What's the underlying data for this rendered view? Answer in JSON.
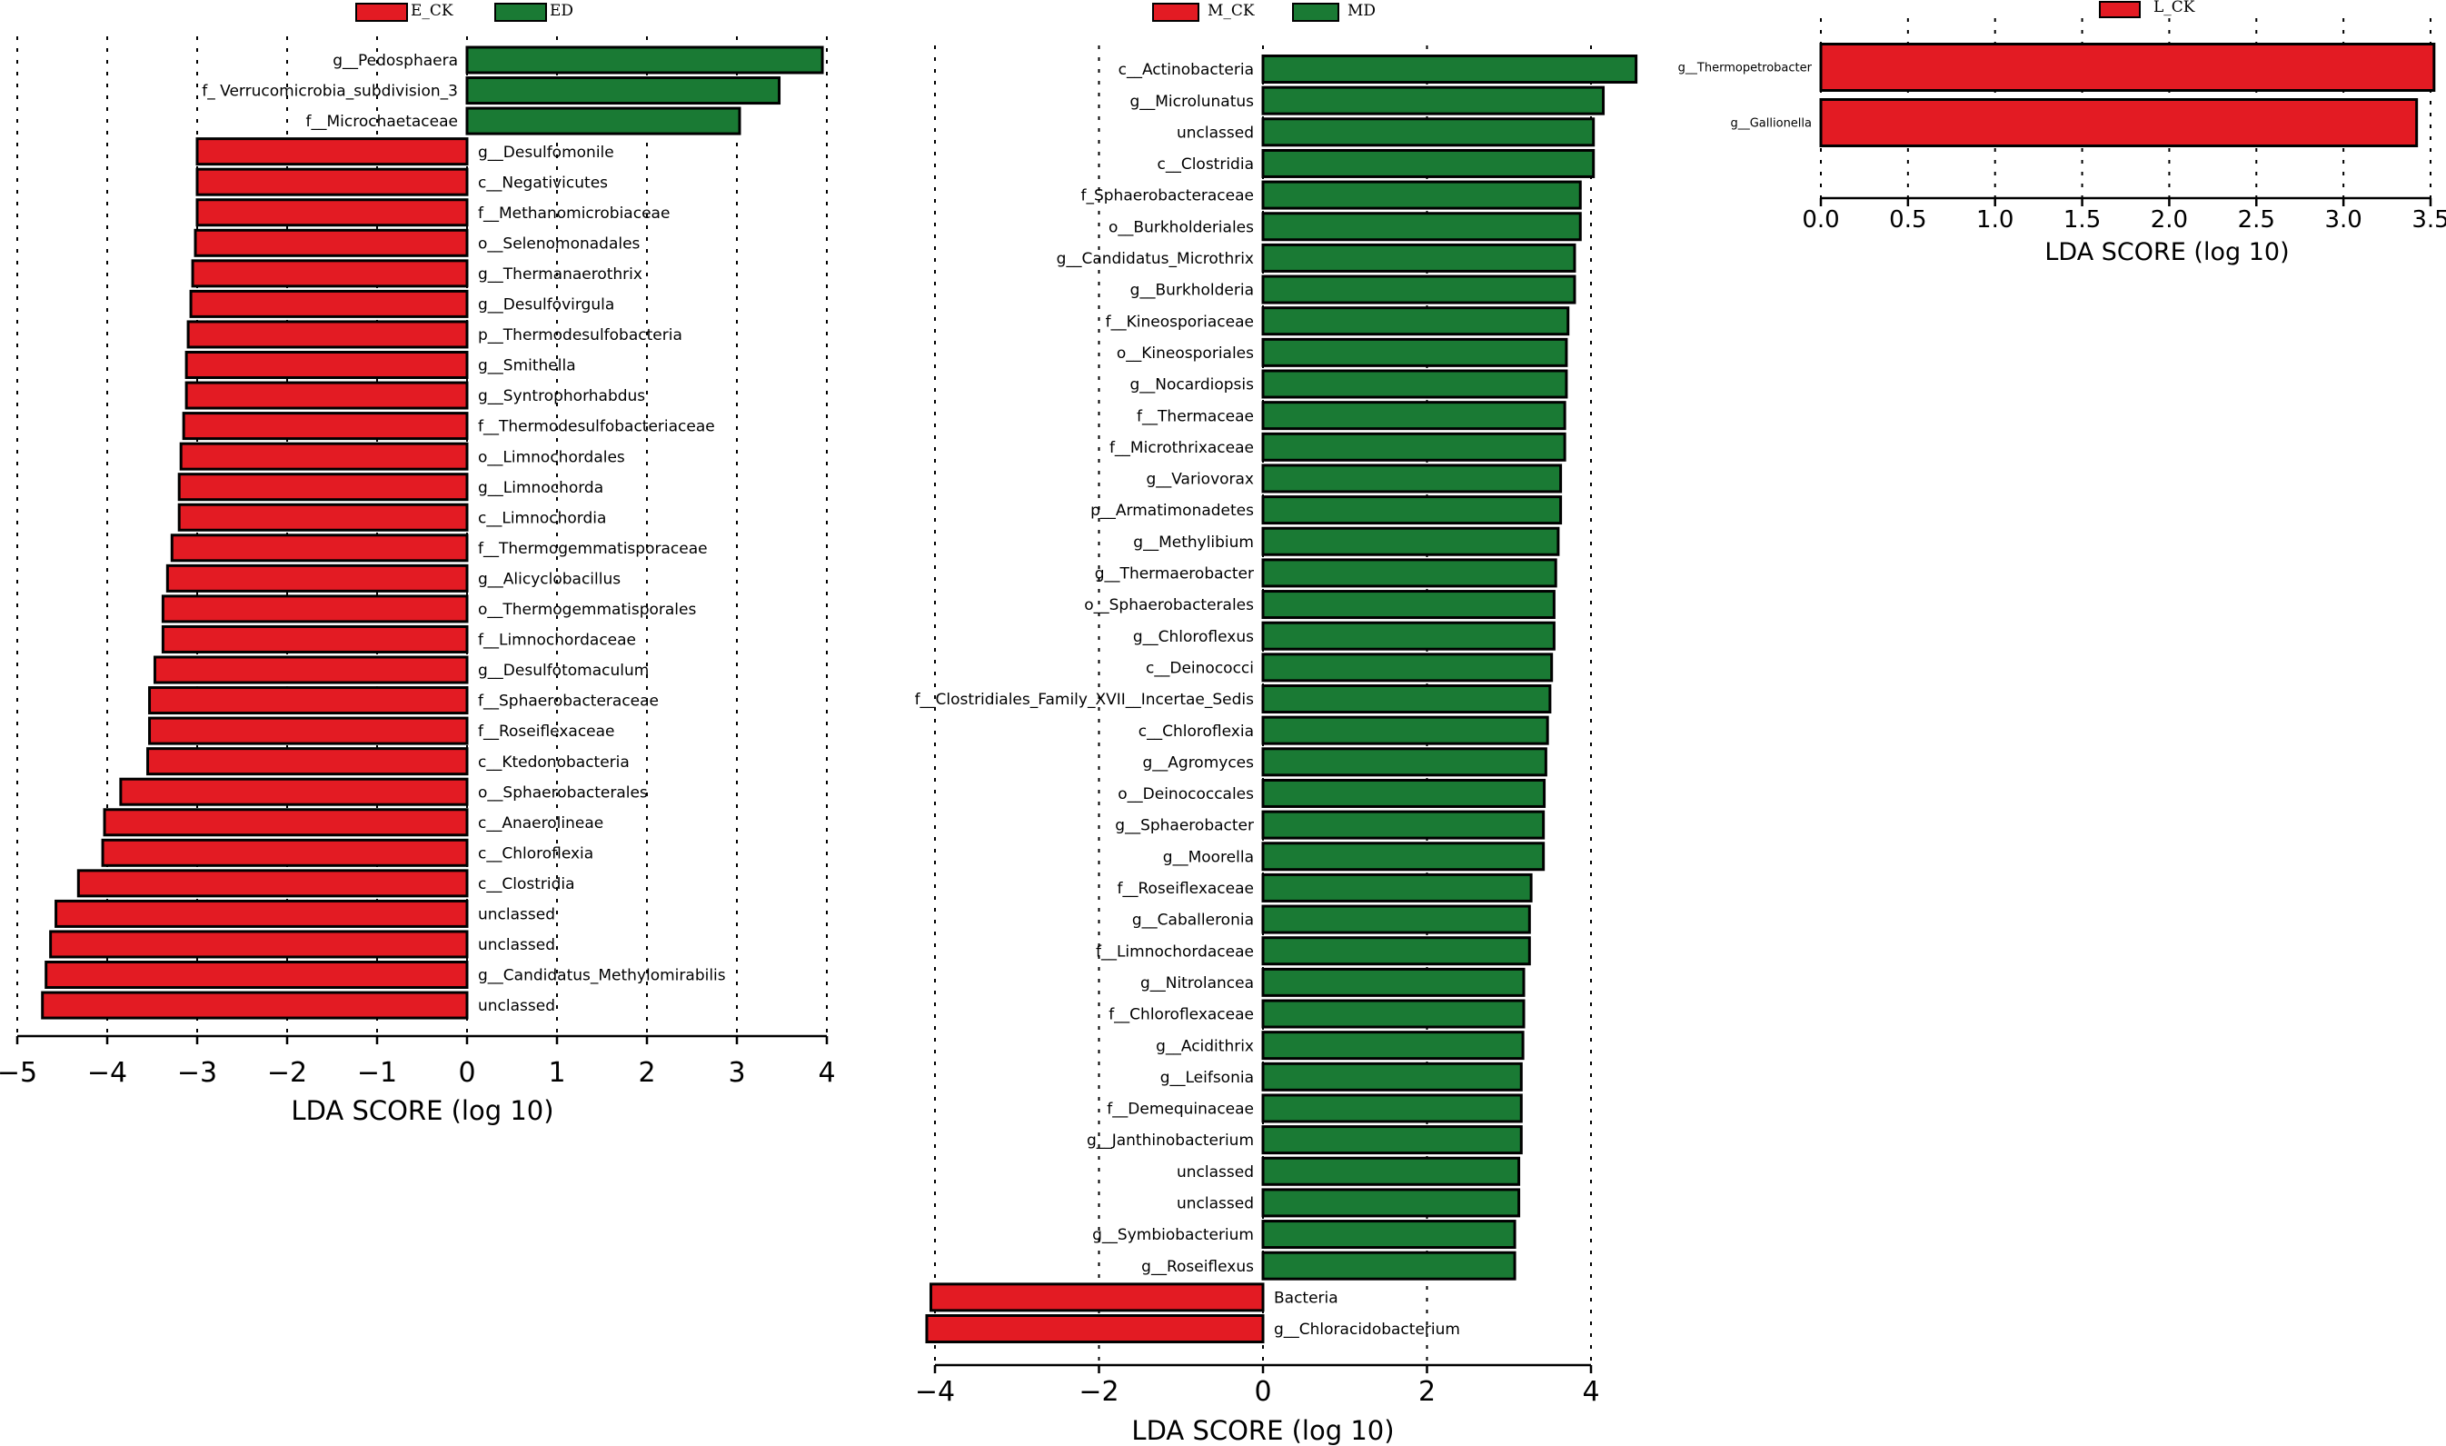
{
  "colors": {
    "red": "#e31b23",
    "green": "#1a7a34"
  },
  "chart_data": [
    {
      "type": "bar",
      "orientation": "horizontal",
      "title": "",
      "legend": [
        {
          "label": "E_CK",
          "color": "#e31b23"
        },
        {
          "label": "ED",
          "color": "#1a7a34"
        }
      ],
      "xlabel": "LDA SCORE (log 10)",
      "xlim": [
        -5,
        4.1
      ],
      "xticks": [
        -5,
        -4,
        -3,
        -2,
        -1,
        0,
        1,
        2,
        3,
        4
      ],
      "tick_labels": [
        "−5",
        "−4",
        "−3",
        "−2",
        "−1",
        "0",
        "1",
        "2",
        "3",
        "4"
      ],
      "bars": [
        {
          "label": "g__Pedosphaera",
          "value": 3.95,
          "group": "ED"
        },
        {
          "label": "f_ Verrucomicrobia_subdivision_3",
          "value": 3.47,
          "group": "ED"
        },
        {
          "label": "f__Microchaetaceae",
          "value": 3.03,
          "group": "ED"
        },
        {
          "label": "g__Desulfomonile",
          "value": -3.0,
          "group": "E_CK"
        },
        {
          "label": "c__Negativicutes",
          "value": -3.0,
          "group": "E_CK"
        },
        {
          "label": "f__Methanomicrobiaceae",
          "value": -3.0,
          "group": "E_CK"
        },
        {
          "label": "o__Selenomonadales",
          "value": -3.02,
          "group": "E_CK"
        },
        {
          "label": "g__Thermanaerothrix",
          "value": -3.05,
          "group": "E_CK"
        },
        {
          "label": "g__Desulfovirgula",
          "value": -3.07,
          "group": "E_CK"
        },
        {
          "label": "p__Thermodesulfobacteria",
          "value": -3.1,
          "group": "E_CK"
        },
        {
          "label": "g__Smithella",
          "value": -3.12,
          "group": "E_CK"
        },
        {
          "label": "g__Syntrophorhabdus",
          "value": -3.12,
          "group": "E_CK"
        },
        {
          "label": "f__Thermodesulfobacteriaceae",
          "value": -3.15,
          "group": "E_CK"
        },
        {
          "label": "o__Limnochordales",
          "value": -3.18,
          "group": "E_CK"
        },
        {
          "label": "g__Limnochorda",
          "value": -3.2,
          "group": "E_CK"
        },
        {
          "label": "c__Limnochordia",
          "value": -3.2,
          "group": "E_CK"
        },
        {
          "label": "f__Thermogemmatisporaceae",
          "value": -3.28,
          "group": "E_CK"
        },
        {
          "label": "g__Alicyclobacillus",
          "value": -3.33,
          "group": "E_CK"
        },
        {
          "label": "o__Thermogemmatisporales",
          "value": -3.38,
          "group": "E_CK"
        },
        {
          "label": "f__Limnochordaceae",
          "value": -3.38,
          "group": "E_CK"
        },
        {
          "label": "g__Desulfotomaculum",
          "value": -3.47,
          "group": "E_CK"
        },
        {
          "label": "f__Sphaerobacteraceae",
          "value": -3.53,
          "group": "E_CK"
        },
        {
          "label": "f__Roseiflexaceae",
          "value": -3.53,
          "group": "E_CK"
        },
        {
          "label": "c__Ktedonobacteria",
          "value": -3.55,
          "group": "E_CK"
        },
        {
          "label": "o__Sphaerobacterales",
          "value": -3.85,
          "group": "E_CK"
        },
        {
          "label": "c__Anaerolineae",
          "value": -4.03,
          "group": "E_CK"
        },
        {
          "label": "c__Chloroflexia",
          "value": -4.05,
          "group": "E_CK"
        },
        {
          "label": "c__Clostridia",
          "value": -4.32,
          "group": "E_CK"
        },
        {
          "label": "unclassed",
          "value": -4.57,
          "group": "E_CK"
        },
        {
          "label": "unclassed",
          "value": -4.63,
          "group": "E_CK"
        },
        {
          "label": "g__Candidatus_Methylomirabilis",
          "value": -4.68,
          "group": "E_CK"
        },
        {
          "label": "unclassed",
          "value": -4.72,
          "group": "E_CK"
        }
      ]
    },
    {
      "type": "bar",
      "orientation": "horizontal",
      "title": "",
      "legend": [
        {
          "label": "M_CK",
          "color": "#e31b23"
        },
        {
          "label": "MD",
          "color": "#1a7a34"
        }
      ],
      "xlabel": "LDA SCORE (log 10)",
      "xlim": [
        -4.2,
        4.6
      ],
      "xticks": [
        -4,
        -2,
        0,
        2,
        4
      ],
      "tick_labels": [
        "−4",
        "−2",
        "0",
        "2",
        "4"
      ],
      "bars": [
        {
          "label": "c__Actinobacteria",
          "value": 4.55,
          "group": "MD"
        },
        {
          "label": "g__Microlunatus",
          "value": 4.15,
          "group": "MD"
        },
        {
          "label": "unclassed",
          "value": 4.03,
          "group": "MD"
        },
        {
          "label": "c__Clostridia",
          "value": 4.03,
          "group": "MD"
        },
        {
          "label": "f_Sphaerobacteraceae",
          "value": 3.87,
          "group": "MD"
        },
        {
          "label": "o__Burkholderiales",
          "value": 3.87,
          "group": "MD"
        },
        {
          "label": "g__Candidatus_Microthrix",
          "value": 3.8,
          "group": "MD"
        },
        {
          "label": "g__Burkholderia",
          "value": 3.8,
          "group": "MD"
        },
        {
          "label": "f__Kineosporiaceae",
          "value": 3.72,
          "group": "MD"
        },
        {
          "label": "o__Kineosporiales",
          "value": 3.7,
          "group": "MD"
        },
        {
          "label": "g__Nocardiopsis",
          "value": 3.7,
          "group": "MD"
        },
        {
          "label": "f__Thermaceae",
          "value": 3.68,
          "group": "MD"
        },
        {
          "label": "f__Microthrixaceae",
          "value": 3.68,
          "group": "MD"
        },
        {
          "label": "g__Variovorax",
          "value": 3.63,
          "group": "MD"
        },
        {
          "label": "p__Armatimonadetes",
          "value": 3.63,
          "group": "MD"
        },
        {
          "label": "g__Methylibium",
          "value": 3.6,
          "group": "MD"
        },
        {
          "label": "g__Thermaerobacter",
          "value": 3.57,
          "group": "MD"
        },
        {
          "label": "o__Sphaerobacterales",
          "value": 3.55,
          "group": "MD"
        },
        {
          "label": "g__Chloroflexus",
          "value": 3.55,
          "group": "MD"
        },
        {
          "label": "c__Deinococci",
          "value": 3.52,
          "group": "MD"
        },
        {
          "label": "f__Clostridiales_Family_XVII__Incertae_Sedis",
          "value": 3.5,
          "group": "MD"
        },
        {
          "label": "c__Chloroflexia",
          "value": 3.47,
          "group": "MD"
        },
        {
          "label": "g__Agromyces",
          "value": 3.45,
          "group": "MD"
        },
        {
          "label": "o__Deinococcales",
          "value": 3.43,
          "group": "MD"
        },
        {
          "label": "g__Sphaerobacter",
          "value": 3.42,
          "group": "MD"
        },
        {
          "label": "g__Moorella",
          "value": 3.42,
          "group": "MD"
        },
        {
          "label": "f__Roseiflexaceae",
          "value": 3.27,
          "group": "MD"
        },
        {
          "label": "g__Caballeronia",
          "value": 3.25,
          "group": "MD"
        },
        {
          "label": "f__Limnochordaceae",
          "value": 3.25,
          "group": "MD"
        },
        {
          "label": "g__Nitrolancea",
          "value": 3.18,
          "group": "MD"
        },
        {
          "label": "f__Chloroflexaceae",
          "value": 3.18,
          "group": "MD"
        },
        {
          "label": "g__Acidithrix",
          "value": 3.17,
          "group": "MD"
        },
        {
          "label": "g__Leifsonia",
          "value": 3.15,
          "group": "MD"
        },
        {
          "label": "f__Demequinaceae",
          "value": 3.15,
          "group": "MD"
        },
        {
          "label": "g__Janthinobacterium",
          "value": 3.15,
          "group": "MD"
        },
        {
          "label": "unclassed",
          "value": 3.12,
          "group": "MD"
        },
        {
          "label": "unclassed",
          "value": 3.12,
          "group": "MD"
        },
        {
          "label": "g__Symbiobacterium",
          "value": 3.07,
          "group": "MD"
        },
        {
          "label": "g__Roseiflexus",
          "value": 3.07,
          "group": "MD"
        },
        {
          "label": "Bacteria",
          "value": -4.05,
          "group": "M_CK"
        },
        {
          "label": "g__Chloracidobacterium",
          "value": -4.1,
          "group": "M_CK"
        }
      ]
    },
    {
      "type": "bar",
      "orientation": "horizontal",
      "title": "",
      "legend": [
        {
          "label": "L_CK",
          "color": "#e31b23"
        }
      ],
      "xlabel": "LDA SCORE (log 10)",
      "xlim": [
        0,
        3.5
      ],
      "xticks": [
        0,
        0.5,
        1.0,
        1.5,
        2.0,
        2.5,
        3.0,
        3.5
      ],
      "tick_labels": [
        "0.0",
        "0.5",
        "1.0",
        "1.5",
        "2.0",
        "2.5",
        "3.0",
        "3.5"
      ],
      "bars": [
        {
          "label": "g__Thermopetrobacter",
          "value": 3.52,
          "group": "L_CK"
        },
        {
          "label": "g__Gallionella",
          "value": 3.42,
          "group": "L_CK"
        }
      ]
    }
  ]
}
